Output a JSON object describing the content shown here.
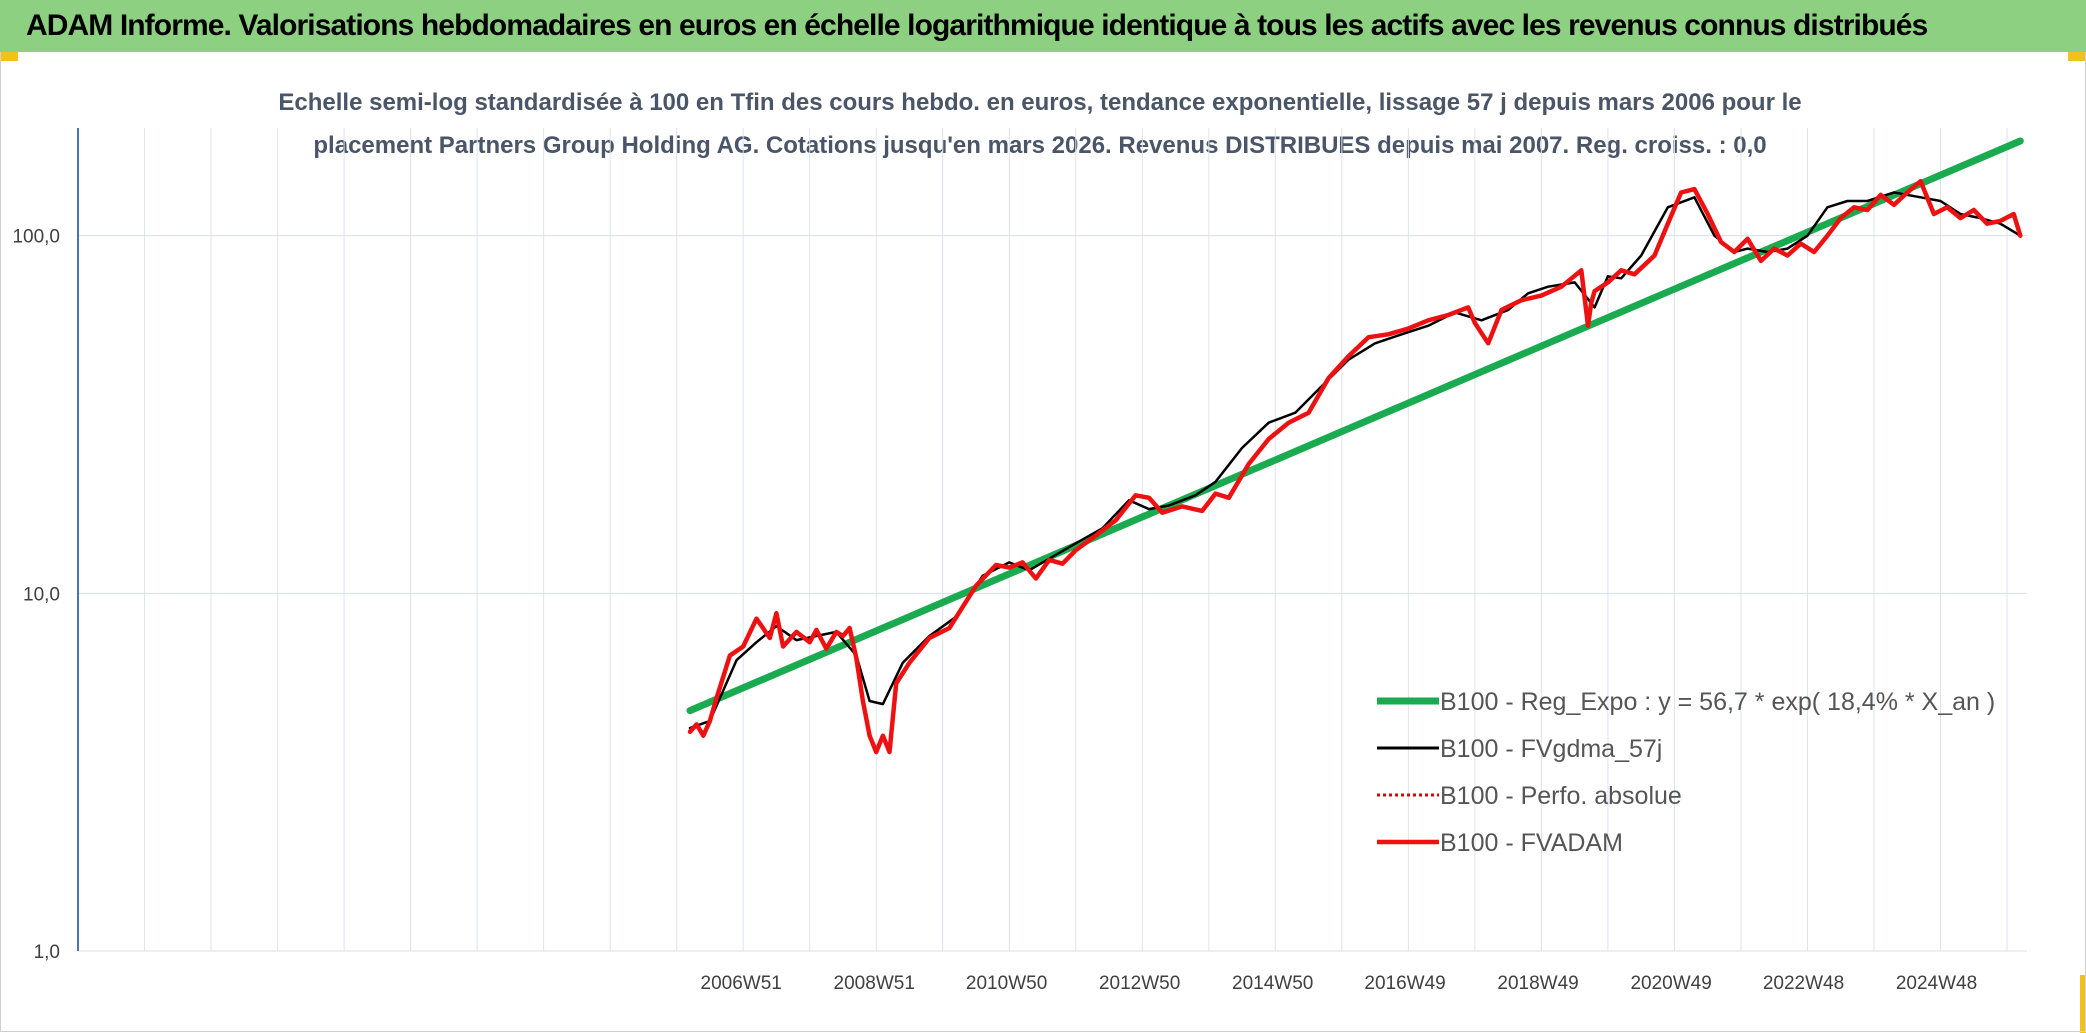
{
  "banner": {
    "title": "ADAM Informe. Valorisations hebdomadaires en euros en échelle logarithmique identique à tous les actifs avec les revenus connus distribués"
  },
  "colors": {
    "banner_bg": "#8ed082",
    "corner_accent": "#f2c21a",
    "trend": "#1aaa50",
    "smooth": "#000000",
    "perf": "#e00000",
    "fvadam": "#ee1111"
  },
  "chart_data": {
    "type": "line",
    "title_lines": [
      "Echelle semi-log standardisée à 100 en Tfin des cours hebdo. en euros, tendance exponentielle, lissage 57 j depuis mars 2006 pour le",
      "placement Partners Group Holding AG. Cotations jusqu'en mars 2026. Revenus DISTRIBUES depuis mai 2007. Reg. croiss. : 0,0"
    ],
    "y_scale": "log",
    "ylim": [
      1,
      200
    ],
    "y_ticks": [
      {
        "value": 1,
        "label": "1,0"
      },
      {
        "value": 10,
        "label": "10,0"
      },
      {
        "value": 100,
        "label": "100,0"
      }
    ],
    "xlim": [
      1997.0,
      2026.3
    ],
    "x_ticks": [
      {
        "value": 2006.97,
        "label": "2006W51"
      },
      {
        "value": 2008.97,
        "label": "2008W51"
      },
      {
        "value": 2010.96,
        "label": "2010W50"
      },
      {
        "value": 2012.96,
        "label": "2012W50"
      },
      {
        "value": 2014.96,
        "label": "2014W50"
      },
      {
        "value": 2016.95,
        "label": "2016W49"
      },
      {
        "value": 2018.95,
        "label": "2018W49"
      },
      {
        "value": 2020.95,
        "label": "2020W49"
      },
      {
        "value": 2022.94,
        "label": "2022W48"
      },
      {
        "value": 2024.94,
        "label": "2024W48"
      }
    ],
    "grid": true,
    "legend_position": "bottom-right",
    "series": [
      {
        "name": "B100 - Reg_Expo : y = 56,7 * exp( 18,4% *  X_an )",
        "style": "trend",
        "x": [
          2006.2,
          2026.2
        ],
        "y": [
          4.7,
          184
        ]
      },
      {
        "name": "B100 - FVgdma_57j",
        "style": "smooth",
        "x": [
          2006.2,
          2006.5,
          2006.9,
          2007.2,
          2007.5,
          2007.8,
          2008.1,
          2008.4,
          2008.7,
          2008.9,
          2009.1,
          2009.4,
          2009.8,
          2010.2,
          2010.6,
          2011.0,
          2011.3,
          2011.6,
          2012.0,
          2012.4,
          2012.8,
          2013.1,
          2013.4,
          2013.8,
          2014.1,
          2014.5,
          2014.9,
          2015.3,
          2015.7,
          2016.1,
          2016.5,
          2016.9,
          2017.3,
          2017.7,
          2018.1,
          2018.5,
          2018.8,
          2019.1,
          2019.5,
          2019.8,
          2020.0,
          2020.2,
          2020.5,
          2020.9,
          2021.3,
          2021.6,
          2021.9,
          2022.1,
          2022.4,
          2022.7,
          2023.0,
          2023.3,
          2023.6,
          2023.9,
          2024.3,
          2024.7,
          2025.0,
          2025.3,
          2025.6,
          2025.9,
          2026.2
        ],
        "y": [
          4.2,
          4.4,
          6.5,
          7.3,
          8.1,
          7.4,
          7.6,
          7.8,
          6.7,
          5.0,
          4.9,
          6.4,
          7.6,
          8.6,
          11.2,
          12.2,
          11.6,
          12.5,
          13.8,
          15.2,
          18.2,
          17.2,
          17.6,
          18.8,
          20.5,
          25.5,
          30.0,
          32.0,
          38.0,
          45.0,
          50.0,
          53.0,
          56.0,
          61.0,
          58.0,
          62.0,
          69.0,
          72.0,
          74.0,
          63.0,
          77.0,
          76.0,
          88.0,
          120.0,
          128.0,
          100.0,
          90.0,
          92.0,
          90.0,
          92.0,
          100.0,
          120.0,
          125.0,
          125.0,
          132.0,
          128.0,
          125.0,
          115.0,
          112.0,
          108.0,
          100.0
        ]
      },
      {
        "name": "B100 - Perfo. absolue",
        "style": "perf",
        "x": [],
        "y": []
      },
      {
        "name": "B100 - FVADAM",
        "style": "fvadam",
        "x": [
          2006.2,
          2006.3,
          2006.4,
          2006.5,
          2006.6,
          2006.8,
          2007.0,
          2007.2,
          2007.4,
          2007.5,
          2007.6,
          2007.8,
          2008.0,
          2008.1,
          2008.25,
          2008.4,
          2008.5,
          2008.6,
          2008.7,
          2008.8,
          2008.9,
          2009.0,
          2009.1,
          2009.2,
          2009.3,
          2009.5,
          2009.8,
          2010.1,
          2010.5,
          2010.8,
          2011.0,
          2011.2,
          2011.4,
          2011.6,
          2011.8,
          2012.0,
          2012.3,
          2012.6,
          2012.9,
          2013.1,
          2013.3,
          2013.6,
          2013.9,
          2014.1,
          2014.3,
          2014.6,
          2014.9,
          2015.2,
          2015.5,
          2015.8,
          2016.1,
          2016.4,
          2016.7,
          2017.0,
          2017.3,
          2017.6,
          2017.9,
          2018.0,
          2018.2,
          2018.4,
          2018.7,
          2019.0,
          2019.3,
          2019.6,
          2019.7,
          2019.75,
          2019.8,
          2020.0,
          2020.2,
          2020.4,
          2020.7,
          2020.9,
          2021.1,
          2021.3,
          2021.5,
          2021.7,
          2021.9,
          2022.1,
          2022.3,
          2022.5,
          2022.7,
          2022.9,
          2023.1,
          2023.3,
          2023.5,
          2023.7,
          2023.9,
          2024.1,
          2024.3,
          2024.5,
          2024.7,
          2024.9,
          2025.1,
          2025.3,
          2025.5,
          2025.7,
          2025.9,
          2026.1,
          2026.2
        ],
        "y": [
          4.1,
          4.3,
          4.0,
          4.4,
          5.1,
          6.7,
          7.1,
          8.5,
          7.5,
          8.8,
          7.1,
          7.8,
          7.3,
          7.9,
          7.0,
          7.8,
          7.6,
          8.0,
          6.6,
          5.0,
          4.0,
          3.6,
          4.0,
          3.6,
          5.6,
          6.4,
          7.5,
          8.0,
          10.5,
          12.0,
          11.8,
          12.2,
          11.0,
          12.4,
          12.1,
          13.2,
          14.5,
          16.0,
          18.8,
          18.5,
          16.8,
          17.5,
          17.0,
          19.0,
          18.5,
          23.0,
          27.0,
          30.0,
          32.0,
          40.0,
          46.0,
          52.0,
          53.0,
          55.0,
          58.0,
          60.0,
          63.0,
          57.0,
          50.0,
          62.0,
          66.0,
          68.0,
          72.0,
          80.0,
          56.0,
          65.0,
          70.0,
          74.0,
          80.0,
          78.0,
          88.0,
          108.0,
          132.0,
          135.0,
          115.0,
          96.0,
          90.0,
          98.0,
          85.0,
          92.0,
          88.0,
          95.0,
          90.0,
          100.0,
          112.0,
          120.0,
          118.0,
          130.0,
          122.0,
          132.0,
          142.0,
          115.0,
          120.0,
          112.0,
          118.0,
          108.0,
          110.0,
          115.0,
          100.0
        ]
      }
    ]
  }
}
